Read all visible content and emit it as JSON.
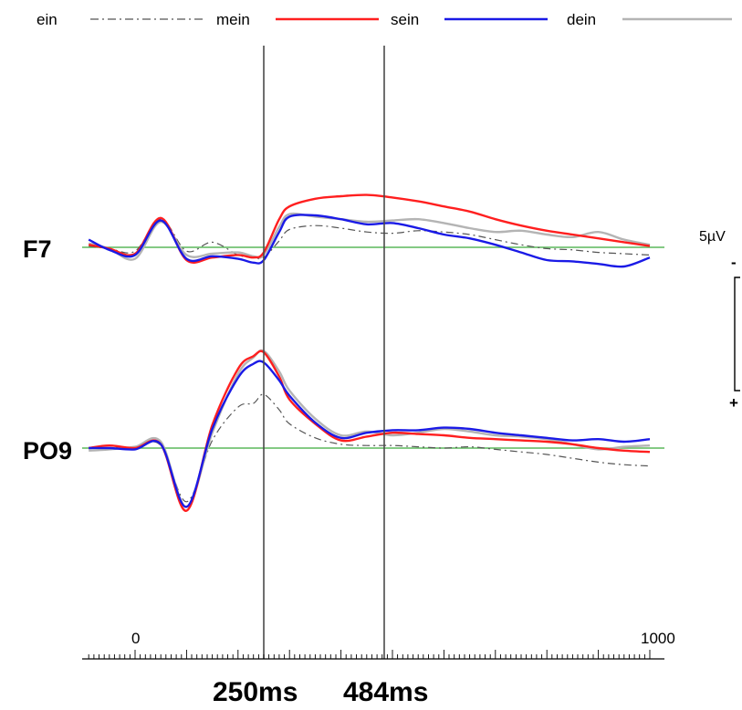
{
  "chart_data": {
    "type": "line",
    "x_unit": "ms",
    "xlim": [
      -90,
      1000
    ],
    "x_tick_labels": [
      "0",
      "1000"
    ],
    "markers": [
      {
        "x": 250,
        "label": "250ms"
      },
      {
        "x": 484,
        "label": "484ms"
      }
    ],
    "scale_bar": {
      "label": "5µV",
      "top_sign": "-",
      "bottom_sign": "+",
      "value_uV": 5
    },
    "polarity": "negative up",
    "legend": [
      {
        "name": "ein",
        "color": "#555555",
        "style": "dash-dot"
      },
      {
        "name": "mein",
        "color": "#ff1f1f",
        "style": "solid"
      },
      {
        "name": "sein",
        "color": "#1a1ae6",
        "style": "solid"
      },
      {
        "name": "dein",
        "color": "#b4b4b4",
        "style": "solid"
      }
    ],
    "baseline_color": "#5cb85c",
    "x": [
      -90,
      -50,
      0,
      50,
      100,
      150,
      200,
      230,
      250,
      280,
      300,
      350,
      400,
      450,
      500,
      550,
      600,
      650,
      700,
      750,
      800,
      850,
      900,
      950,
      1000
    ],
    "panels": [
      {
        "channel": "F7",
        "series": [
          {
            "name": "ein",
            "values": [
              0.1,
              -0.1,
              -0.3,
              2.2,
              -0.3,
              0.4,
              -0.6,
              -0.8,
              -0.8,
              0.5,
              1.4,
              1.7,
              1.5,
              1.2,
              1.1,
              1.3,
              1.2,
              1.0,
              0.6,
              0.2,
              -0.1,
              -0.2,
              -0.4,
              -0.5,
              -0.6
            ]
          },
          {
            "name": "mein",
            "values": [
              0.2,
              -0.1,
              -0.5,
              2.3,
              -1.0,
              -0.8,
              -0.6,
              -0.8,
              -0.4,
              2.2,
              3.2,
              3.8,
              4.0,
              4.1,
              3.9,
              3.6,
              3.2,
              2.8,
              2.2,
              1.7,
              1.3,
              1.0,
              0.7,
              0.4,
              0.1
            ]
          },
          {
            "name": "sein",
            "values": [
              0.6,
              -0.2,
              -0.6,
              2.1,
              -0.9,
              -0.7,
              -0.9,
              -1.2,
              -1.0,
              1.2,
              2.4,
              2.5,
              2.2,
              1.8,
              1.9,
              1.5,
              1.0,
              0.7,
              0.2,
              -0.4,
              -1.0,
              -1.1,
              -1.3,
              -1.5,
              -0.8
            ]
          },
          {
            "name": "dein",
            "values": [
              0.3,
              -0.1,
              -0.9,
              2.0,
              -0.6,
              -0.5,
              -0.4,
              -0.7,
              -0.6,
              1.6,
              2.6,
              2.4,
              2.2,
              2.0,
              2.1,
              2.2,
              1.9,
              1.5,
              1.2,
              1.3,
              1.0,
              0.8,
              1.2,
              0.6,
              0.2
            ]
          }
        ]
      },
      {
        "channel": "PO9",
        "series": [
          {
            "name": "ein",
            "values": [
              0.0,
              0.0,
              0.1,
              0.2,
              -4.2,
              0.6,
              3.2,
              3.5,
              4.2,
              3.0,
              1.9,
              0.8,
              0.3,
              0.2,
              0.2,
              0.1,
              0.0,
              0.1,
              -0.1,
              -0.3,
              -0.5,
              -0.8,
              -1.1,
              -1.3,
              -1.4
            ]
          },
          {
            "name": "mein",
            "values": [
              0.0,
              0.2,
              0.0,
              0.3,
              -4.9,
              1.8,
              6.2,
              7.2,
              7.5,
              5.6,
              3.8,
              1.9,
              0.6,
              0.9,
              1.2,
              1.1,
              1.0,
              0.8,
              0.7,
              0.6,
              0.5,
              0.3,
              0.0,
              -0.2,
              -0.3
            ]
          },
          {
            "name": "sein",
            "values": [
              0.0,
              0.0,
              -0.1,
              0.3,
              -4.6,
              1.5,
              5.5,
              6.6,
              6.7,
              5.3,
              4.1,
              2.0,
              0.8,
              1.2,
              1.4,
              1.4,
              1.6,
              1.5,
              1.2,
              1.0,
              0.8,
              0.6,
              0.7,
              0.5,
              0.7
            ]
          },
          {
            "name": "dein",
            "values": [
              -0.2,
              -0.1,
              0.1,
              0.5,
              -4.6,
              1.2,
              5.8,
              7.1,
              7.6,
              6.0,
              4.5,
              2.3,
              1.0,
              1.3,
              1.0,
              1.2,
              1.5,
              1.3,
              1.0,
              0.9,
              0.7,
              0.3,
              -0.1,
              0.1,
              0.2
            ]
          }
        ]
      }
    ]
  }
}
